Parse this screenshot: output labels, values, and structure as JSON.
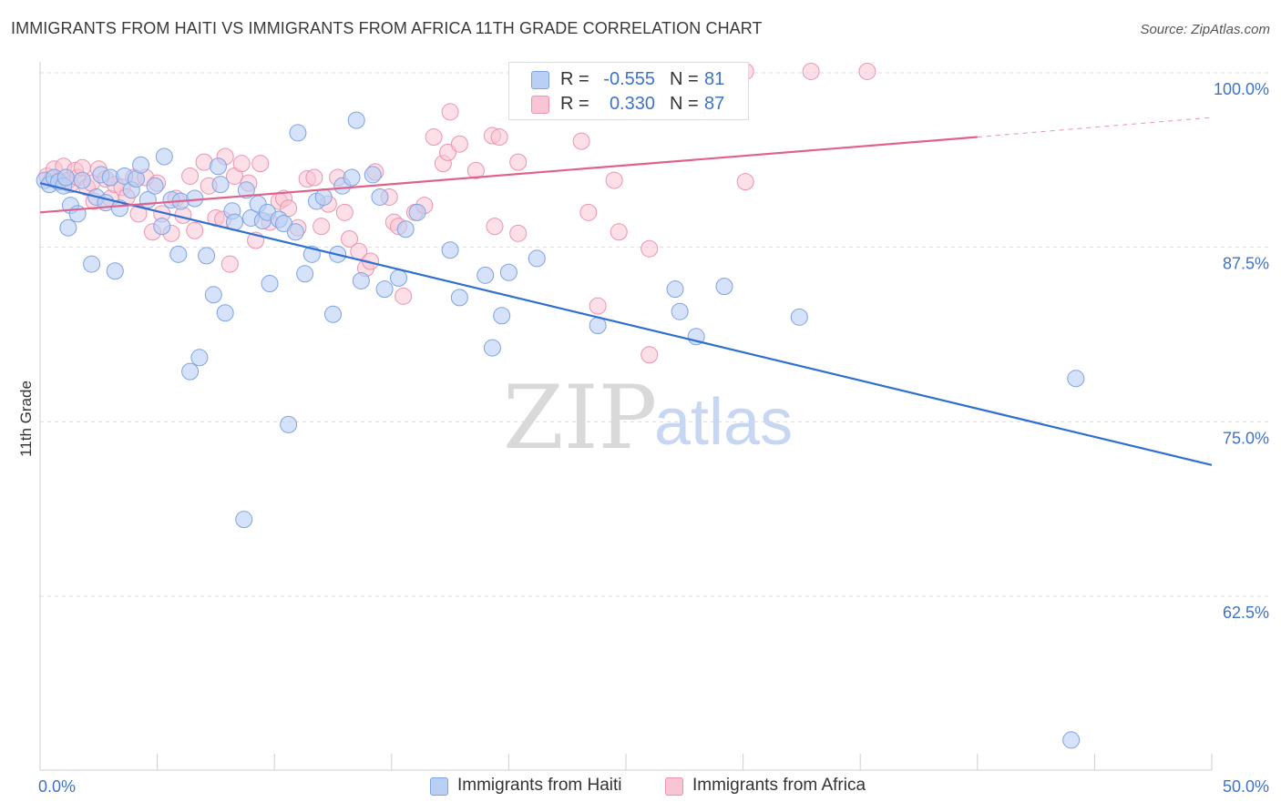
{
  "header": {
    "title": "IMMIGRANTS FROM HAITI VS IMMIGRANTS FROM AFRICA 11TH GRADE CORRELATION CHART",
    "source": "Source: ZipAtlas.com"
  },
  "watermark": {
    "zip": "ZIP",
    "atlas": "atlas"
  },
  "colors": {
    "haiti_fill": "#b9cff5",
    "haiti_stroke": "#7ea3e3",
    "haiti_line": "#2f6fd0",
    "africa_fill": "#f9c4d3",
    "africa_stroke": "#ee93ae",
    "africa_line": "#e0628c",
    "tick_label": "#3f73c8",
    "grid": "#dddddd"
  },
  "legend": {
    "rows": [
      {
        "r_label": "R =",
        "r_value": "-0.555",
        "n_label": "N =",
        "n_value": "81"
      },
      {
        "r_label": "R =",
        "r_value": "0.330",
        "n_label": "N =",
        "n_value": "87"
      }
    ]
  },
  "bottom_legend": {
    "haiti": "Immigrants from Haiti",
    "africa": "Immigrants from Africa"
  },
  "chart_data": {
    "type": "scatter",
    "title": "IMMIGRANTS FROM HAITI VS IMMIGRANTS FROM AFRICA 11TH GRADE CORRELATION CHART",
    "xlabel": "",
    "ylabel": "11th Grade",
    "xlim": [
      0,
      50
    ],
    "ylim": [
      52,
      102
    ],
    "x_tick_labels": [
      "0.0%",
      "50.0%"
    ],
    "y_ticks": [
      62.5,
      75.0,
      87.5,
      100.0
    ],
    "y_tick_labels": [
      "62.5%",
      "75.0%",
      "87.5%",
      "100.0%"
    ],
    "grid": true,
    "legend_position": "top-center",
    "series": [
      {
        "name": "Immigrants from Haiti",
        "r": -0.555,
        "n": 81,
        "trend": {
          "x": [
            0,
            50
          ],
          "y": [
            92.1,
            71.9
          ]
        },
        "points": [
          [
            0.2,
            92.3
          ],
          [
            0.4,
            92.0
          ],
          [
            0.6,
            92.5
          ],
          [
            0.8,
            92.2
          ],
          [
            1.0,
            91.9
          ],
          [
            1.1,
            92.5
          ],
          [
            1.2,
            88.9
          ],
          [
            1.3,
            90.5
          ],
          [
            1.6,
            89.9
          ],
          [
            1.8,
            92.3
          ],
          [
            2.2,
            86.3
          ],
          [
            2.4,
            91.1
          ],
          [
            2.6,
            92.7
          ],
          [
            2.8,
            90.7
          ],
          [
            3.0,
            92.5
          ],
          [
            3.2,
            85.8
          ],
          [
            3.4,
            90.3
          ],
          [
            3.6,
            92.6
          ],
          [
            3.9,
            91.6
          ],
          [
            4.1,
            92.4
          ],
          [
            4.3,
            93.4
          ],
          [
            4.6,
            90.9
          ],
          [
            4.9,
            91.9
          ],
          [
            5.2,
            89.0
          ],
          [
            5.3,
            94.0
          ],
          [
            5.6,
            90.9
          ],
          [
            5.9,
            87.0
          ],
          [
            6.0,
            90.8
          ],
          [
            6.4,
            78.6
          ],
          [
            6.6,
            91.0
          ],
          [
            6.8,
            79.6
          ],
          [
            7.1,
            86.9
          ],
          [
            7.4,
            84.1
          ],
          [
            7.6,
            93.3
          ],
          [
            7.7,
            92.0
          ],
          [
            7.9,
            82.8
          ],
          [
            8.2,
            90.1
          ],
          [
            8.3,
            89.3
          ],
          [
            8.7,
            68.0
          ],
          [
            8.8,
            91.6
          ],
          [
            9.0,
            89.6
          ],
          [
            9.3,
            90.6
          ],
          [
            9.5,
            89.4
          ],
          [
            9.7,
            90.0
          ],
          [
            9.8,
            84.9
          ],
          [
            10.2,
            89.5
          ],
          [
            10.4,
            89.2
          ],
          [
            10.6,
            74.8
          ],
          [
            10.9,
            88.6
          ],
          [
            11.0,
            95.7
          ],
          [
            11.3,
            85.6
          ],
          [
            11.6,
            87.0
          ],
          [
            11.8,
            90.8
          ],
          [
            12.1,
            91.1
          ],
          [
            12.5,
            82.7
          ],
          [
            12.7,
            87.0
          ],
          [
            12.9,
            91.9
          ],
          [
            13.3,
            92.5
          ],
          [
            13.5,
            96.6
          ],
          [
            13.7,
            85.1
          ],
          [
            14.2,
            92.7
          ],
          [
            14.5,
            91.1
          ],
          [
            14.7,
            84.5
          ],
          [
            15.3,
            85.3
          ],
          [
            15.6,
            88.8
          ],
          [
            16.1,
            90.0
          ],
          [
            17.5,
            87.3
          ],
          [
            17.9,
            83.9
          ],
          [
            19.0,
            85.5
          ],
          [
            19.3,
            80.3
          ],
          [
            19.7,
            82.6
          ],
          [
            20.0,
            85.7
          ],
          [
            21.2,
            86.7
          ],
          [
            23.8,
            81.9
          ],
          [
            27.1,
            84.5
          ],
          [
            27.3,
            82.9
          ],
          [
            28.0,
            81.1
          ],
          [
            29.2,
            84.7
          ],
          [
            32.4,
            82.5
          ],
          [
            44.2,
            78.1
          ],
          [
            44.0,
            52.2
          ]
        ]
      },
      {
        "name": "Immigrants from Africa",
        "r": 0.33,
        "n": 87,
        "trend": {
          "x": [
            0,
            40
          ],
          "y": [
            90.0,
            95.4
          ]
        },
        "trend_dashed": {
          "x": [
            40,
            50
          ],
          "y": [
            95.4,
            96.8
          ]
        },
        "points": [
          [
            0.3,
            92.6
          ],
          [
            0.5,
            92.4
          ],
          [
            0.6,
            93.1
          ],
          [
            0.8,
            92.2
          ],
          [
            1.0,
            93.3
          ],
          [
            1.2,
            92.3
          ],
          [
            1.3,
            92.0
          ],
          [
            1.5,
            93.0
          ],
          [
            1.6,
            92.5
          ],
          [
            1.8,
            93.2
          ],
          [
            2.0,
            91.8
          ],
          [
            2.2,
            92.1
          ],
          [
            2.3,
            90.8
          ],
          [
            2.5,
            93.1
          ],
          [
            2.8,
            92.4
          ],
          [
            3.0,
            91.0
          ],
          [
            3.2,
            92.0
          ],
          [
            3.5,
            91.8
          ],
          [
            3.7,
            91.1
          ],
          [
            4.0,
            92.5
          ],
          [
            4.2,
            89.9
          ],
          [
            4.5,
            92.5
          ],
          [
            4.8,
            88.6
          ],
          [
            5.0,
            92.1
          ],
          [
            5.2,
            89.9
          ],
          [
            5.6,
            88.5
          ],
          [
            5.8,
            91.0
          ],
          [
            6.1,
            89.8
          ],
          [
            6.4,
            92.6
          ],
          [
            6.6,
            88.7
          ],
          [
            7.0,
            93.6
          ],
          [
            7.2,
            91.9
          ],
          [
            7.5,
            89.6
          ],
          [
            7.8,
            89.5
          ],
          [
            7.9,
            94.0
          ],
          [
            8.1,
            86.3
          ],
          [
            8.3,
            92.6
          ],
          [
            8.6,
            93.5
          ],
          [
            8.9,
            92.1
          ],
          [
            9.2,
            88.0
          ],
          [
            9.4,
            93.5
          ],
          [
            9.8,
            89.3
          ],
          [
            10.2,
            90.8
          ],
          [
            10.4,
            91.0
          ],
          [
            10.6,
            90.3
          ],
          [
            11.0,
            88.9
          ],
          [
            11.4,
            92.4
          ],
          [
            11.7,
            92.5
          ],
          [
            12.0,
            89.0
          ],
          [
            12.3,
            90.6
          ],
          [
            12.7,
            92.5
          ],
          [
            13.0,
            90.0
          ],
          [
            13.2,
            88.1
          ],
          [
            13.6,
            87.2
          ],
          [
            13.9,
            86.0
          ],
          [
            14.1,
            86.5
          ],
          [
            14.3,
            92.9
          ],
          [
            14.9,
            91.1
          ],
          [
            15.1,
            89.3
          ],
          [
            15.3,
            89.0
          ],
          [
            15.5,
            84.0
          ],
          [
            16.0,
            90.0
          ],
          [
            16.4,
            90.5
          ],
          [
            16.8,
            95.4
          ],
          [
            17.2,
            93.5
          ],
          [
            17.4,
            94.3
          ],
          [
            17.9,
            94.9
          ],
          [
            18.6,
            93.0
          ],
          [
            19.3,
            95.5
          ],
          [
            19.6,
            95.4
          ],
          [
            19.4,
            89.0
          ],
          [
            20.4,
            88.5
          ],
          [
            20.4,
            93.6
          ],
          [
            23.4,
            90.0
          ],
          [
            23.8,
            83.3
          ],
          [
            24.5,
            92.3
          ],
          [
            24.7,
            88.6
          ],
          [
            26.0,
            87.4
          ],
          [
            26.0,
            79.8
          ],
          [
            30.1,
            92.2
          ],
          [
            23.1,
            95.1
          ],
          [
            17.5,
            97.2
          ],
          [
            20.4,
            100.1
          ],
          [
            24.8,
            100.1
          ],
          [
            30.1,
            100.1
          ],
          [
            32.9,
            100.1
          ],
          [
            35.3,
            100.1
          ]
        ]
      }
    ]
  }
}
